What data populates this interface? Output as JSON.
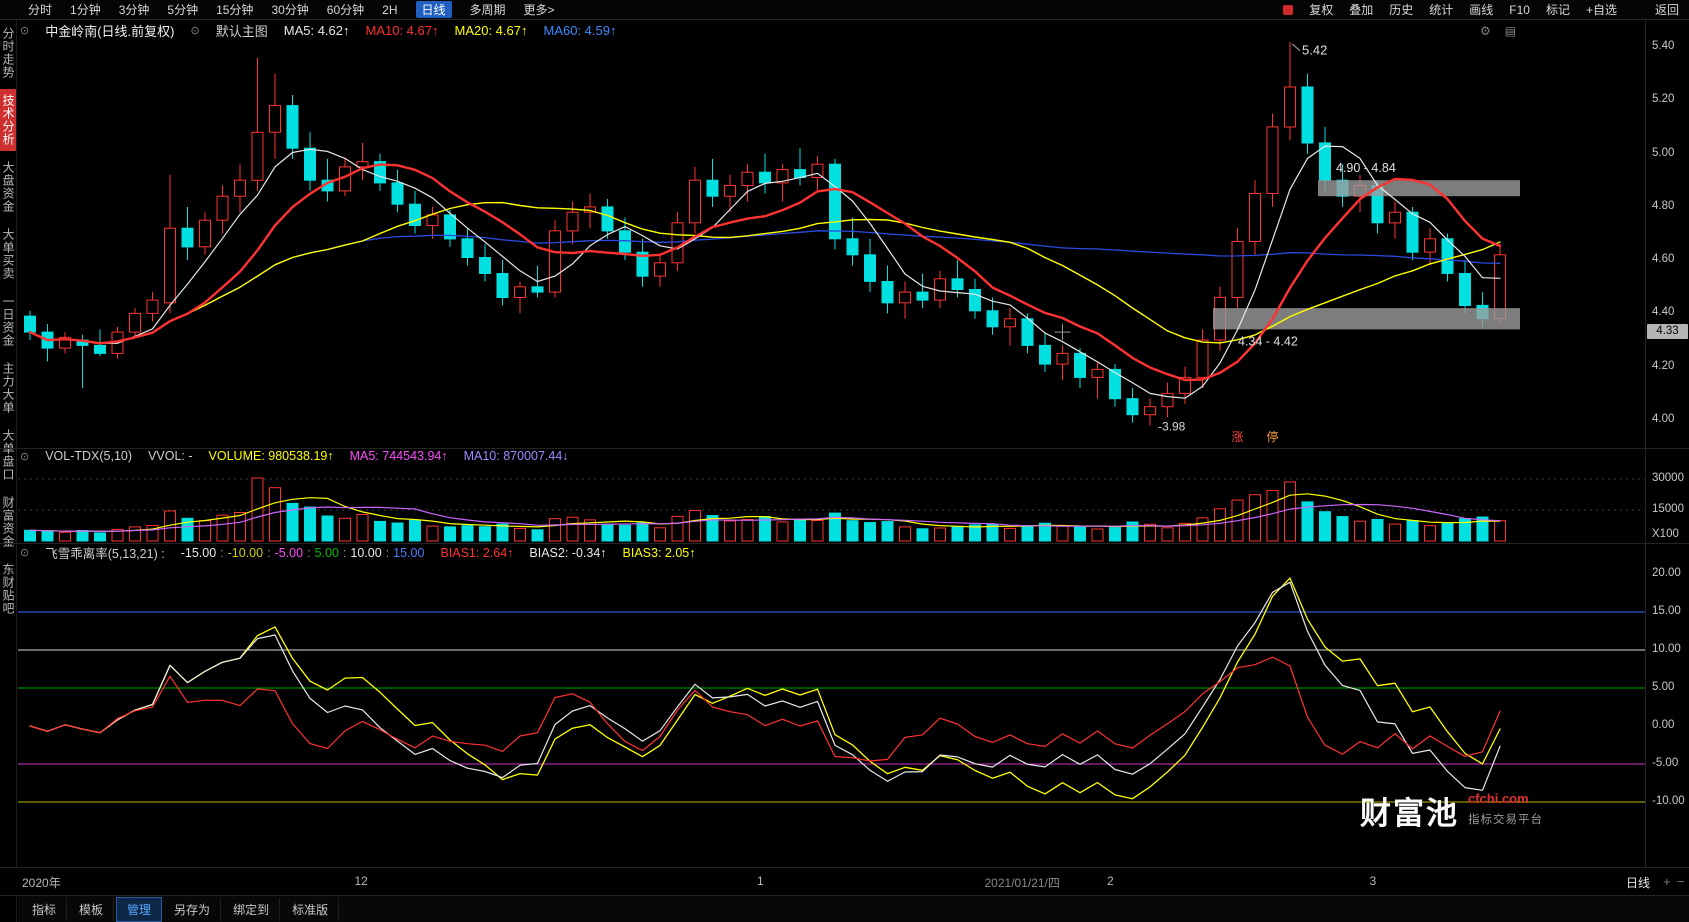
{
  "topbar": {
    "periods": [
      "分时",
      "1分钟",
      "3分钟",
      "5分钟",
      "15分钟",
      "30分钟",
      "60分钟",
      "2H",
      "日线",
      "多周期",
      "更多>"
    ],
    "active_period": "日线",
    "right_items": [
      "复权",
      "叠加",
      "历史",
      "统计",
      "画线",
      "F10",
      "标记",
      "+自选",
      "返回"
    ]
  },
  "sidebar": {
    "items": [
      "分时走势",
      "技术分析",
      "大盘资金",
      "大单买卖",
      "一日资金",
      "主力大单",
      "大单盘口",
      "财富资金",
      "东财贴吧"
    ],
    "active": "技术分析"
  },
  "icons": {
    "panel_toggle": "⊙",
    "gear": "⚙",
    "layout": "▤",
    "zoom_in": "+",
    "zoom_out": "−"
  },
  "main_chart": {
    "title": "中金岭南(日线.前复权)",
    "layout_label": "默认主图",
    "legend": {
      "ma5": "MA5: 4.62↑",
      "ma10": "MA10: 4.67↑",
      "ma20": "MA20: 4.67↑",
      "ma60": "MA60: 4.59↑"
    },
    "price_axis": [
      "5.40",
      "5.20",
      "5.00",
      "4.80",
      "4.60",
      "4.40",
      "4.20",
      "4.00"
    ],
    "current_price_label": "4.33"
  },
  "volume_panel": {
    "title": "VOL-TDX(5,10)",
    "vvol": "VVOL: -",
    "legend": {
      "volume": "VOLUME: 980538.19↑",
      "ma5": "MA5: 744543.94↑",
      "ma10": "MA10: 870007.44↓"
    },
    "axis": [
      "30000",
      "15000",
      "X100"
    ]
  },
  "bias_panel": {
    "title": "飞雪乖离率(5,13,21) :",
    "params": [
      {
        "text": "-15.00",
        "color": "#e8e8e8"
      },
      {
        "text": "-10.00",
        "color": "#cfcf00"
      },
      {
        "text": "-5.00",
        "color": "#ff4dff"
      },
      {
        "text": "5.00",
        "color": "#00b800"
      },
      {
        "text": "10.00",
        "color": "#e8e8e8"
      },
      {
        "text": "15.00",
        "color": "#4d7dff"
      }
    ],
    "legend": {
      "bias1": "BIAS1: 2.64↑",
      "bias2": "BIAS2: -0.34↑",
      "bias3": "BIAS3: 2.05↑"
    },
    "axis": [
      "20.00",
      "15.00",
      "10.00",
      "5.00",
      "0.00",
      "-5.00",
      "-10.00"
    ]
  },
  "time_axis": {
    "labels": [
      {
        "text": "2020年",
        "index": 0,
        "dim": false
      },
      {
        "text": "12",
        "index": 19,
        "dim": false
      },
      {
        "text": "1",
        "index": 42,
        "dim": false
      },
      {
        "text": "2021/01/21/四",
        "index": 55,
        "dim": true
      },
      {
        "text": "2",
        "index": 62,
        "dim": false
      },
      {
        "text": "3",
        "index": 77,
        "dim": false
      }
    ],
    "period_label": "日线"
  },
  "bottom_tabs": {
    "items": [
      "指标",
      "模板",
      "管理",
      "另存为",
      "绑定到",
      "标准版"
    ],
    "active": "管理"
  },
  "watermark": {
    "brand": "财富池",
    "domain": "cfchi.com",
    "tagline": "指标交易平台"
  },
  "colors": {
    "up": "#ff3232",
    "down": "#00e0e0",
    "ma5": "#e8e8e8",
    "ma10": "#ff3232",
    "ma20": "#ffff00",
    "ma60": "#2b4ade",
    "vol_ma5": "#ffff00",
    "vol_ma10": "#cc66ff",
    "bias1": "#ff3232",
    "bias2": "#e8e8e8",
    "bias3": "#ffff00",
    "zone": "#9c9c9c",
    "annotation": "#e0e0e0",
    "accent_blue": "#1f5fc0",
    "active_red": "#cf2f2f"
  },
  "chart_data": {
    "type": "candlestick",
    "ohlcv_fields": [
      "open",
      "high",
      "low",
      "close",
      "volume_x100"
    ],
    "price_range": [
      3.93,
      5.47
    ],
    "volume_axis_max_x100": 30000,
    "bias_axis_range": [
      -15,
      20
    ],
    "ma_periods": [
      5,
      10,
      20,
      60
    ],
    "vol_ma_periods": [
      5,
      10
    ],
    "bias_periods": [
      5,
      13,
      21
    ],
    "bias_ref_lines": [
      {
        "value": 15,
        "color": "#3a6bff"
      },
      {
        "value": 10,
        "color": "#d8d8d8"
      },
      {
        "value": 5,
        "color": "#00a800"
      },
      {
        "value": -5,
        "color": "#cc33cc"
      },
      {
        "value": -10,
        "color": "#b8b800"
      }
    ],
    "zones": [
      {
        "label": "4.90 - 4.84",
        "price_top": 4.9,
        "price_bottom": 4.84,
        "start_index": 74
      },
      {
        "label": "4.34 - 4.42",
        "price_top": 4.42,
        "price_bottom": 4.34,
        "start_index": 68
      }
    ],
    "annotations": {
      "peak": {
        "text": "5.42",
        "index": 72,
        "price": 5.42
      },
      "low": {
        "text": "-3.98",
        "index": 64,
        "price": 3.98
      },
      "markers": [
        {
          "text": "涨",
          "color": "#ff4040",
          "index": 69
        },
        {
          "text": "停",
          "color": "#ffa040",
          "index": 71
        }
      ],
      "crosshair": {
        "index": 59,
        "price": 4.33
      }
    },
    "candles": [
      [
        4.39,
        4.41,
        4.3,
        4.33,
        5200
      ],
      [
        4.33,
        4.36,
        4.22,
        4.27,
        4800
      ],
      [
        4.27,
        4.33,
        4.25,
        4.31,
        4200
      ],
      [
        4.3,
        4.32,
        4.12,
        4.28,
        5100
      ],
      [
        4.28,
        4.34,
        4.24,
        4.25,
        3900
      ],
      [
        4.25,
        4.35,
        4.23,
        4.33,
        5600
      ],
      [
        4.33,
        4.42,
        4.31,
        4.4,
        6800
      ],
      [
        4.4,
        4.48,
        4.37,
        4.45,
        7500
      ],
      [
        4.44,
        4.92,
        4.4,
        4.72,
        14500
      ],
      [
        4.72,
        4.8,
        4.6,
        4.65,
        11000
      ],
      [
        4.65,
        4.78,
        4.62,
        4.75,
        9800
      ],
      [
        4.75,
        4.88,
        4.7,
        4.84,
        12500
      ],
      [
        4.84,
        4.96,
        4.78,
        4.9,
        13800
      ],
      [
        4.9,
        5.36,
        4.86,
        5.08,
        30500
      ],
      [
        5.08,
        5.3,
        4.98,
        5.18,
        25800
      ],
      [
        5.18,
        5.22,
        4.98,
        5.02,
        18200
      ],
      [
        5.02,
        5.08,
        4.86,
        4.9,
        16400
      ],
      [
        4.9,
        4.98,
        4.82,
        4.86,
        12100
      ],
      [
        4.86,
        4.98,
        4.84,
        4.95,
        11000
      ],
      [
        4.95,
        5.04,
        4.9,
        4.97,
        12800
      ],
      [
        4.97,
        5.0,
        4.86,
        4.89,
        9500
      ],
      [
        4.89,
        4.94,
        4.78,
        4.81,
        8700
      ],
      [
        4.81,
        4.86,
        4.7,
        4.73,
        9900
      ],
      [
        4.73,
        4.8,
        4.68,
        4.77,
        7200
      ],
      [
        4.77,
        4.79,
        4.65,
        4.68,
        6800
      ],
      [
        4.68,
        4.72,
        4.58,
        4.61,
        7400
      ],
      [
        4.61,
        4.66,
        4.52,
        4.55,
        6900
      ],
      [
        4.55,
        4.6,
        4.43,
        4.46,
        8200
      ],
      [
        4.46,
        4.52,
        4.4,
        4.5,
        6100
      ],
      [
        4.5,
        4.58,
        4.46,
        4.48,
        5400
      ],
      [
        4.48,
        4.75,
        4.46,
        4.71,
        10800
      ],
      [
        4.71,
        4.82,
        4.66,
        4.78,
        11500
      ],
      [
        4.78,
        4.85,
        4.72,
        4.8,
        10200
      ],
      [
        4.8,
        4.83,
        4.68,
        4.71,
        8100
      ],
      [
        4.71,
        4.76,
        4.6,
        4.63,
        7600
      ],
      [
        4.63,
        4.68,
        4.5,
        4.54,
        8800
      ],
      [
        4.54,
        4.62,
        4.5,
        4.59,
        6400
      ],
      [
        4.59,
        4.78,
        4.56,
        4.74,
        11900
      ],
      [
        4.74,
        4.95,
        4.7,
        4.9,
        14800
      ],
      [
        4.9,
        4.98,
        4.8,
        4.84,
        12300
      ],
      [
        4.84,
        4.92,
        4.78,
        4.88,
        9700
      ],
      [
        4.88,
        4.96,
        4.82,
        4.93,
        10400
      ],
      [
        4.93,
        5.0,
        4.85,
        4.89,
        11800
      ],
      [
        4.89,
        4.96,
        4.82,
        4.94,
        9200
      ],
      [
        4.94,
        5.02,
        4.88,
        4.91,
        10600
      ],
      [
        4.91,
        4.99,
        4.86,
        4.96,
        9900
      ],
      [
        4.96,
        4.98,
        4.64,
        4.68,
        13500
      ],
      [
        4.68,
        4.76,
        4.58,
        4.62,
        9800
      ],
      [
        4.62,
        4.68,
        4.48,
        4.52,
        8900
      ],
      [
        4.52,
        4.58,
        4.4,
        4.44,
        9400
      ],
      [
        4.44,
        4.52,
        4.38,
        4.48,
        6800
      ],
      [
        4.48,
        4.55,
        4.42,
        4.45,
        5900
      ],
      [
        4.45,
        4.56,
        4.42,
        4.53,
        6300
      ],
      [
        4.53,
        4.6,
        4.46,
        4.49,
        7100
      ],
      [
        4.49,
        4.53,
        4.38,
        4.41,
        7800
      ],
      [
        4.41,
        4.46,
        4.32,
        4.35,
        8200
      ],
      [
        4.35,
        4.42,
        4.28,
        4.38,
        6100
      ],
      [
        4.38,
        4.4,
        4.25,
        4.28,
        7400
      ],
      [
        4.28,
        4.33,
        4.18,
        4.21,
        8600
      ],
      [
        4.21,
        4.28,
        4.15,
        4.25,
        7200
      ],
      [
        4.25,
        4.27,
        4.12,
        4.16,
        7000
      ],
      [
        4.16,
        4.22,
        4.08,
        4.19,
        5800
      ],
      [
        4.19,
        4.21,
        4.05,
        4.08,
        6500
      ],
      [
        4.08,
        4.12,
        3.99,
        4.02,
        9200
      ],
      [
        4.02,
        4.08,
        3.98,
        4.05,
        8100
      ],
      [
        4.05,
        4.14,
        4.01,
        4.1,
        6400
      ],
      [
        4.1,
        4.2,
        4.06,
        4.16,
        8500
      ],
      [
        4.16,
        4.34,
        4.12,
        4.3,
        11200
      ],
      [
        4.3,
        4.5,
        4.26,
        4.46,
        15600
      ],
      [
        4.46,
        4.72,
        4.42,
        4.67,
        19800
      ],
      [
        4.67,
        4.9,
        4.62,
        4.85,
        22400
      ],
      [
        4.85,
        5.15,
        4.8,
        5.1,
        24500
      ],
      [
        5.1,
        5.42,
        5.05,
        5.25,
        28600
      ],
      [
        5.25,
        5.3,
        5.0,
        5.04,
        18900
      ],
      [
        5.04,
        5.1,
        4.86,
        4.9,
        14200
      ],
      [
        4.9,
        4.96,
        4.8,
        4.84,
        11800
      ],
      [
        4.84,
        4.92,
        4.78,
        4.88,
        9600
      ],
      [
        4.88,
        4.9,
        4.7,
        4.74,
        10400
      ],
      [
        4.74,
        4.82,
        4.68,
        4.78,
        8200
      ],
      [
        4.78,
        4.8,
        4.6,
        4.63,
        9800
      ],
      [
        4.63,
        4.72,
        4.58,
        4.68,
        7400
      ],
      [
        4.68,
        4.7,
        4.52,
        4.55,
        8600
      ],
      [
        4.55,
        4.6,
        4.4,
        4.43,
        10800
      ],
      [
        4.43,
        4.48,
        4.35,
        4.38,
        11600
      ],
      [
        4.38,
        4.66,
        4.36,
        4.62,
        9805
      ]
    ]
  }
}
